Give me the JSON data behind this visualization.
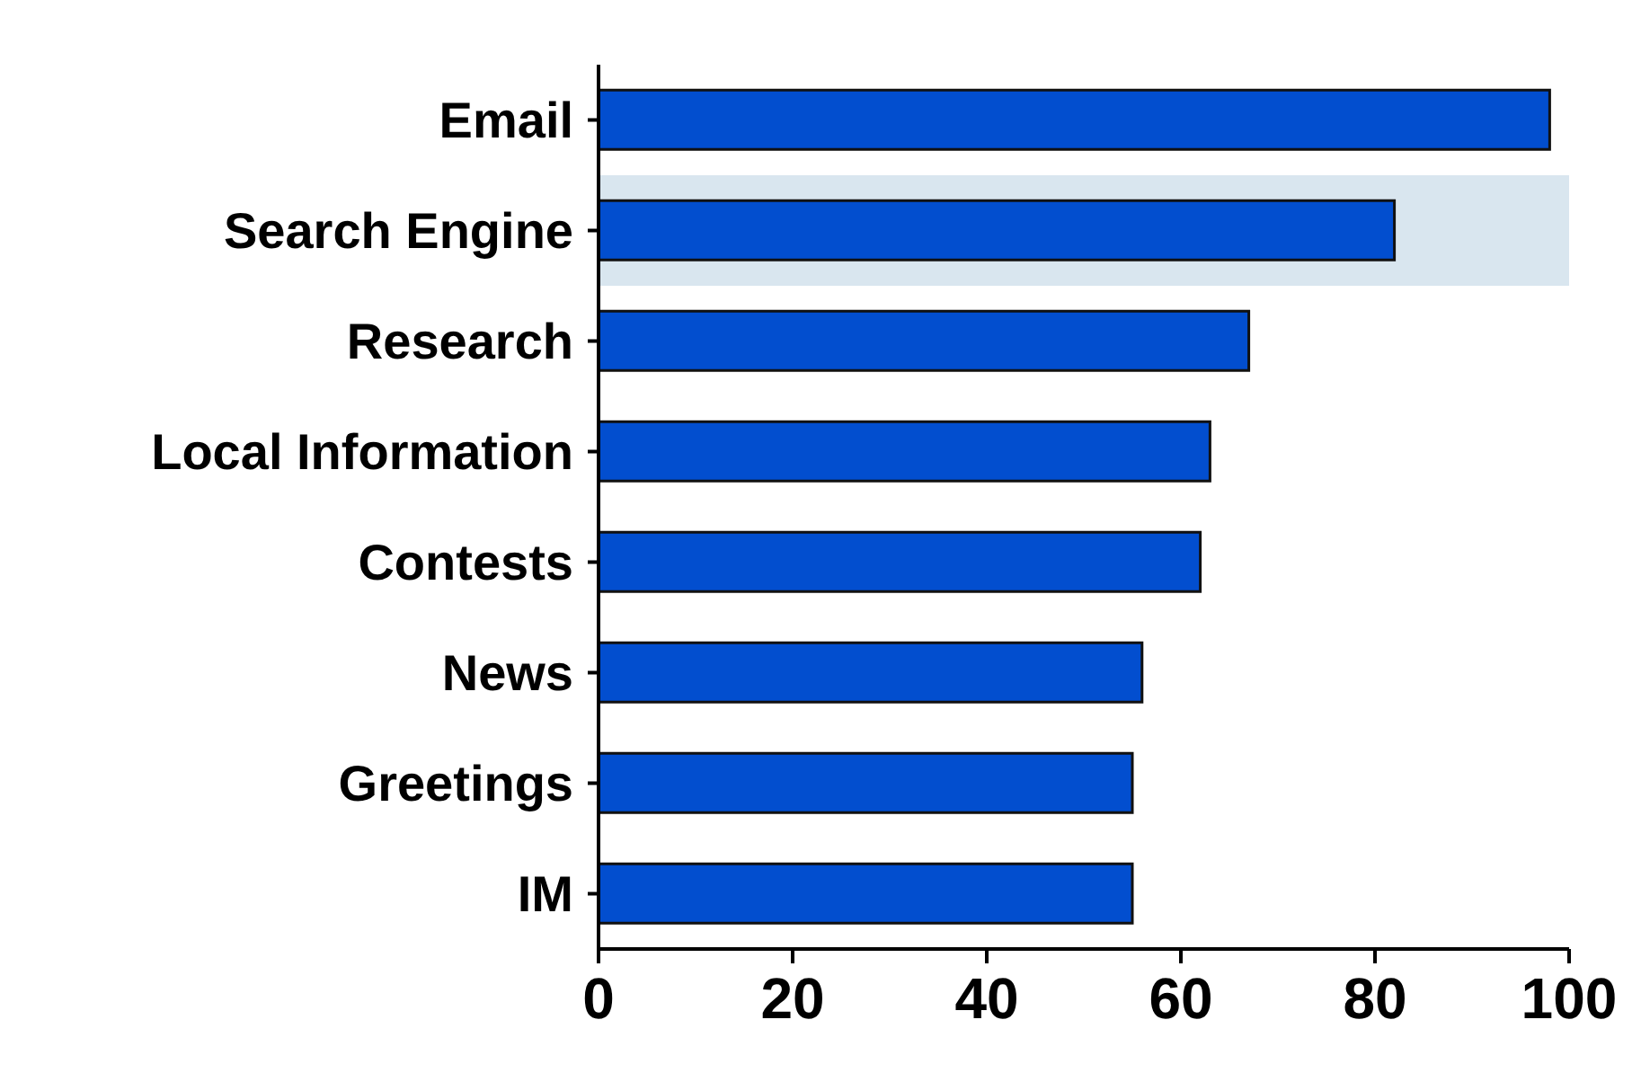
{
  "chart_data": {
    "type": "bar",
    "orientation": "horizontal",
    "categories": [
      "Email",
      "Search Engine",
      "Research",
      "Local Information",
      "Contests",
      "News",
      "Greetings",
      "IM"
    ],
    "values": [
      98,
      82,
      67,
      63,
      62,
      56,
      55,
      55
    ],
    "color": "#024ecf",
    "xlim": [
      0,
      100
    ],
    "xticks": [
      0,
      20,
      40,
      60,
      80,
      100
    ],
    "bands": [
      {
        "axis": "y",
        "from": "Search Engine",
        "to": "Search Engine",
        "color": "#d9e6ef"
      }
    ],
    "grid": false,
    "legend": false
  }
}
